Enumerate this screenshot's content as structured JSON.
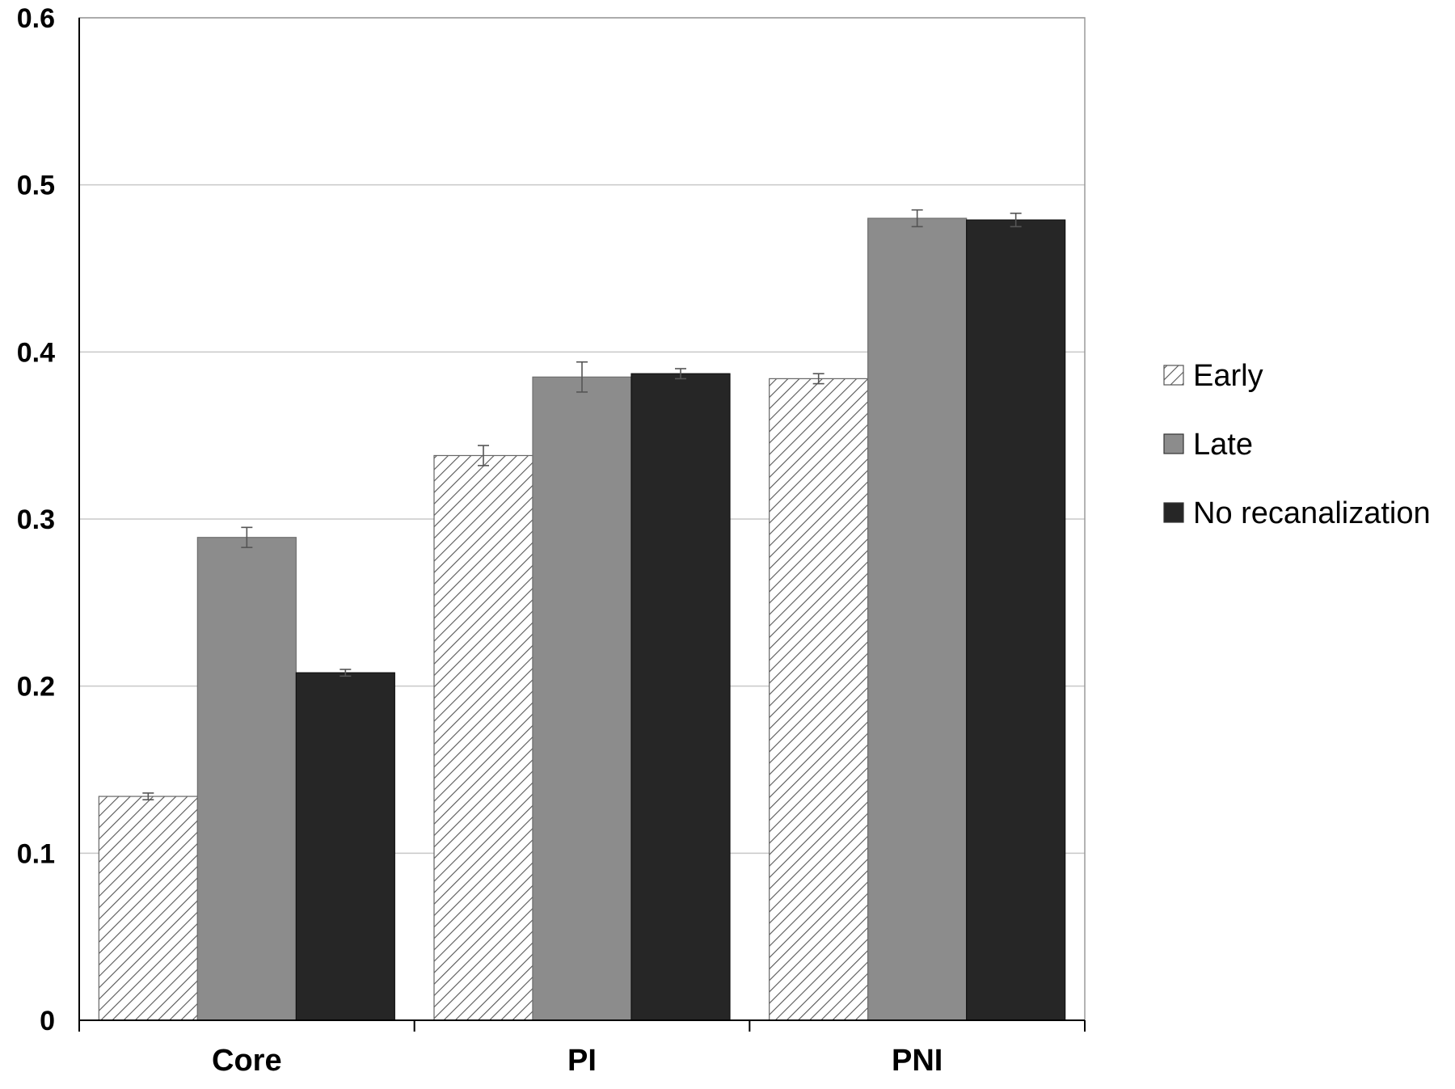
{
  "chart_data": {
    "type": "bar",
    "categories": [
      "Core",
      "PI",
      "PNI"
    ],
    "series": [
      {
        "name": "Early",
        "values": [
          0.134,
          0.338,
          0.384
        ],
        "errors": [
          0.002,
          0.006,
          0.003
        ],
        "color": "#ffffff",
        "pattern": "diagonal-hatch"
      },
      {
        "name": "Late",
        "values": [
          0.289,
          0.385,
          0.48
        ],
        "errors": [
          0.006,
          0.009,
          0.005
        ],
        "color": "#8c8c8c"
      },
      {
        "name": "No recanalization",
        "values": [
          0.208,
          0.387,
          0.479
        ],
        "errors": [
          0.002,
          0.003,
          0.004
        ],
        "color": "#262626"
      }
    ],
    "y_ticks": [
      "0",
      "0.1",
      "0.2",
      "0.3",
      "0.4",
      "0.5",
      "0.6"
    ],
    "ylim": [
      0,
      0.6
    ],
    "grid": true,
    "legend_position": "right"
  }
}
